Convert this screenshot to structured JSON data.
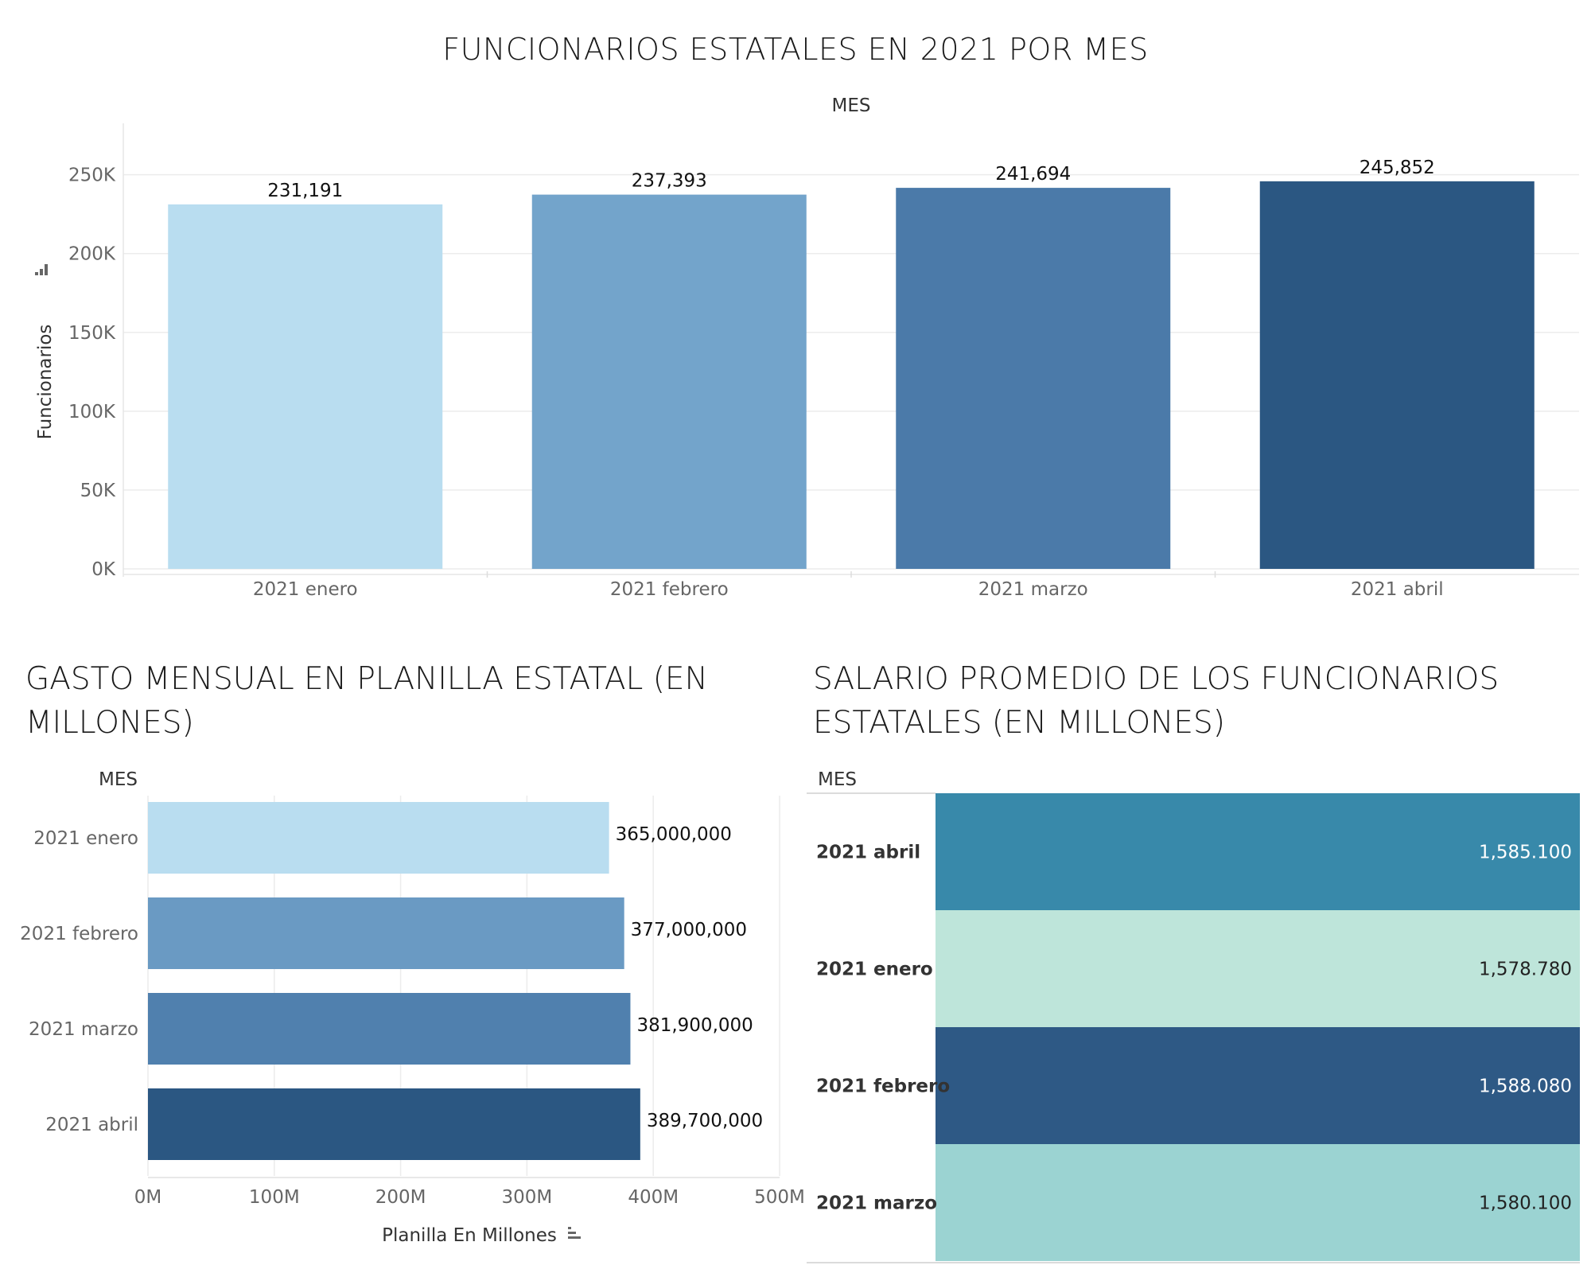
{
  "chart_data": [
    {
      "type": "bar",
      "orientation": "vertical",
      "title": "FUNCIONARIOS ESTATALES EN 2021 POR MES",
      "column_header": "MES",
      "ylabel": "Funcionarios",
      "categories": [
        "2021 enero",
        "2021 febrero",
        "2021 marzo",
        "2021 abril"
      ],
      "values": [
        231191,
        237393,
        241694,
        245852
      ],
      "data_labels": [
        "231,191",
        "237,393",
        "241,694",
        "245,852"
      ],
      "colors": [
        "#b9ddf0",
        "#73a4cb",
        "#4b7aa9",
        "#2b5782"
      ],
      "y_ticks": [
        0,
        50000,
        100000,
        150000,
        200000,
        250000
      ],
      "y_tick_labels": [
        "0K",
        "50K",
        "100K",
        "150K",
        "200K",
        "250K"
      ],
      "ylim": [
        0,
        270000
      ],
      "grid": true
    },
    {
      "type": "bar",
      "orientation": "horizontal",
      "title": "GASTO MENSUAL EN PLANILLA ESTATAL (EN MILLONES)",
      "row_header": "MES",
      "xlabel": "Planilla En Millones",
      "categories": [
        "2021 enero",
        "2021 febrero",
        "2021 marzo",
        "2021 abril"
      ],
      "values": [
        365000000,
        377000000,
        381900000,
        389700000
      ],
      "data_labels": [
        "365,000,000",
        "377,000,000",
        "381,900,000",
        "389,700,000"
      ],
      "colors": [
        "#b9ddf0",
        "#6a9ac3",
        "#5080ae",
        "#2b5782"
      ],
      "x_ticks": [
        0,
        100000000,
        200000000,
        300000000,
        400000000,
        500000000
      ],
      "x_tick_labels": [
        "0M",
        "100M",
        "200M",
        "300M",
        "400M",
        "500M"
      ],
      "xlim": [
        0,
        500000000
      ],
      "grid": true
    },
    {
      "type": "heatmap",
      "title": "SALARIO PROMEDIO DE LOS FUNCIONARIOS ESTATALES (EN MILLONES)",
      "row_header": "MES",
      "rows": [
        "2021 abril",
        "2021 enero",
        "2021 febrero",
        "2021 marzo"
      ],
      "values": [
        1585.1,
        1578.78,
        1588.08,
        1580.1
      ],
      "value_labels": [
        "1,585.100",
        "1,578.780",
        "1,588.080",
        "1,580.100"
      ],
      "colors": [
        "#3889aa",
        "#bee5da",
        "#2e5985",
        "#9bd3d2"
      ],
      "text_colors": [
        "#ffffff",
        "#222222",
        "#ffffff",
        "#222222"
      ]
    }
  ]
}
